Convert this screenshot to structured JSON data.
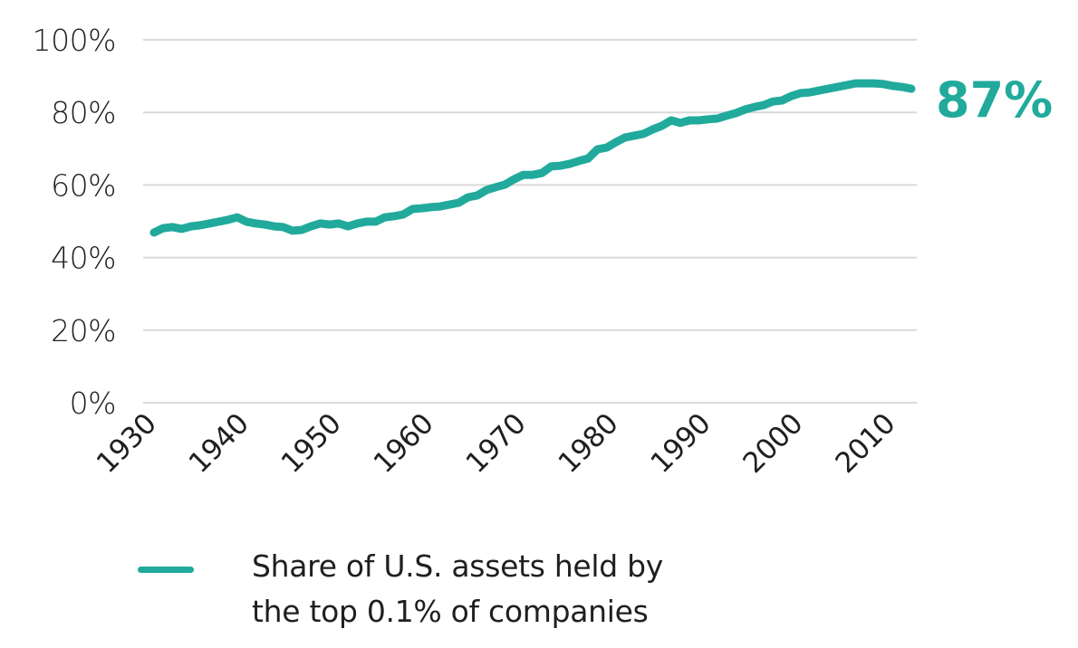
{
  "chart_data": {
    "type": "line",
    "title": "",
    "xlabel": "",
    "ylabel": "",
    "xlim": [
      1930,
      2012
    ],
    "ylim": [
      0,
      100
    ],
    "grid": true,
    "y_ticks": [
      0,
      20,
      40,
      60,
      80,
      100
    ],
    "y_tick_labels": [
      "0%",
      "20%",
      "40%",
      "60%",
      "80%",
      "100%"
    ],
    "x_ticks": [
      1930,
      1940,
      1950,
      1960,
      1970,
      1980,
      1990,
      2000,
      2010
    ],
    "x_tick_labels": [
      "1930",
      "1940",
      "1950",
      "1960",
      "1970",
      "1980",
      "1990",
      "2000",
      "2010"
    ],
    "legend_position": "bottom",
    "series": [
      {
        "name": "Share of U.S. assets held by the top 0.1% of companies",
        "legend_lines": [
          "Share of U.S. assets held by",
          "the top 0.1% of companies"
        ],
        "color": "#21aa9c",
        "end_label": "87%",
        "x": [
          1930,
          1931,
          1932,
          1933,
          1934,
          1935,
          1936,
          1937,
          1938,
          1939,
          1940,
          1941,
          1942,
          1943,
          1944,
          1945,
          1946,
          1947,
          1948,
          1949,
          1950,
          1951,
          1952,
          1953,
          1954,
          1955,
          1956,
          1957,
          1958,
          1959,
          1960,
          1961,
          1962,
          1963,
          1964,
          1965,
          1966,
          1967,
          1968,
          1969,
          1970,
          1971,
          1972,
          1973,
          1974,
          1975,
          1976,
          1977,
          1978,
          1979,
          1980,
          1981,
          1982,
          1983,
          1984,
          1985,
          1986,
          1987,
          1988,
          1989,
          1990,
          1991,
          1992,
          1993,
          1994,
          1995,
          1996,
          1997,
          1998,
          1999,
          2000,
          2001,
          2002,
          2003,
          2004,
          2005,
          2006,
          2007,
          2008,
          2009,
          2010,
          2011,
          2012
        ],
        "values": [
          46.9,
          48.1,
          48.4,
          47.9,
          48.6,
          48.9,
          49.4,
          49.9,
          50.4,
          51.1,
          49.9,
          49.4,
          49.1,
          48.6,
          48.4,
          47.4,
          47.6,
          48.6,
          49.4,
          49.1,
          49.4,
          48.6,
          49.4,
          49.9,
          49.9,
          51.1,
          51.4,
          51.9,
          53.4,
          53.6,
          53.9,
          54.1,
          54.6,
          55.1,
          56.6,
          57.1,
          58.6,
          59.4,
          60.1,
          61.6,
          62.8,
          62.8,
          63.3,
          65.1,
          65.3,
          65.8,
          66.6,
          67.3,
          69.8,
          70.3,
          71.8,
          73.1,
          73.6,
          74.1,
          75.3,
          76.3,
          77.8,
          77.1,
          77.8,
          77.8,
          78.1,
          78.3,
          79.1,
          79.8,
          80.8,
          81.5,
          82.0,
          83.0,
          83.3,
          84.5,
          85.3,
          85.5,
          86.0,
          86.5,
          87.0,
          87.5,
          88.0,
          88.0,
          88.0,
          87.8,
          87.3,
          87.0,
          86.5
        ]
      }
    ]
  }
}
